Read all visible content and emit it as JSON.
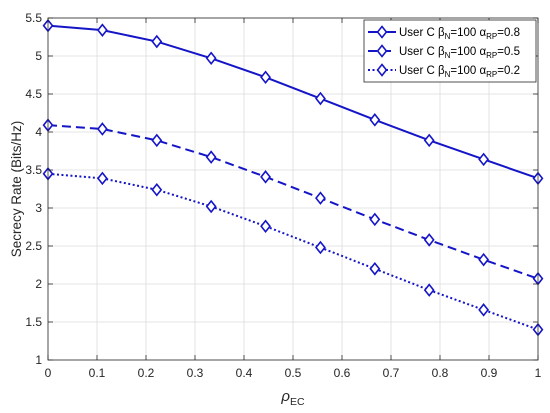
{
  "chart_data": {
    "type": "line",
    "xlabel": {
      "main": "ρ",
      "sub": "EC"
    },
    "ylabel": "Secrecy Rate (Bits/Hz)",
    "xlim": [
      0,
      1
    ],
    "ylim": [
      1,
      5.5
    ],
    "xticks": [
      0,
      0.1,
      0.2,
      0.3,
      0.4,
      0.5,
      0.6,
      0.7,
      0.8,
      0.9,
      1
    ],
    "xtick_labels": [
      "0",
      "0.1",
      "0.2",
      "0.3",
      "0.4",
      "0.5",
      "0.6",
      "0.7",
      "0.8",
      "0.9",
      "1"
    ],
    "yticks": [
      1,
      1.5,
      2,
      2.5,
      3,
      3.5,
      4,
      4.5,
      5,
      5.5
    ],
    "ytick_labels": [
      "1",
      "1.5",
      "2",
      "2.5",
      "3",
      "3.5",
      "4",
      "4.5",
      "5",
      "5.5"
    ],
    "grid": true,
    "legend_position": "top-right",
    "color": "#1515c8",
    "x": [
      0,
      0.111,
      0.222,
      0.333,
      0.444,
      0.556,
      0.667,
      0.778,
      0.889,
      1
    ],
    "series": [
      {
        "name": "User C β_N=100 α_RP=0.8",
        "legend": {
          "prefix": "User C ",
          "beta": "β",
          "beta_sub": "N",
          "mid": "=100 ",
          "alpha": "α",
          "alpha_sub": "RP",
          "suffix": "=0.8"
        },
        "line_style": "solid",
        "marker": "diamond",
        "values": [
          5.4,
          5.34,
          5.19,
          4.97,
          4.72,
          4.44,
          4.16,
          3.89,
          3.64,
          3.39
        ]
      },
      {
        "name": "User C β_N=100 α_RP=0.5",
        "legend": {
          "prefix": "User C ",
          "beta": "β",
          "beta_sub": "N",
          "mid": "=100 ",
          "alpha": "α",
          "alpha_sub": "RP",
          "suffix": "=0.5"
        },
        "line_style": "dashed",
        "marker": "diamond",
        "values": [
          4.09,
          4.04,
          3.89,
          3.67,
          3.41,
          3.13,
          2.85,
          2.58,
          2.32,
          2.07
        ]
      },
      {
        "name": "User C β_N=100 α_RP=0.2",
        "legend": {
          "prefix": "User C ",
          "beta": "β",
          "beta_sub": "N",
          "mid": "=100 ",
          "alpha": "α",
          "alpha_sub": "RP",
          "suffix": "=0.2"
        },
        "line_style": "dotted",
        "marker": "diamond",
        "values": [
          3.45,
          3.39,
          3.24,
          3.02,
          2.76,
          2.48,
          2.2,
          1.92,
          1.66,
          1.4
        ]
      }
    ]
  }
}
